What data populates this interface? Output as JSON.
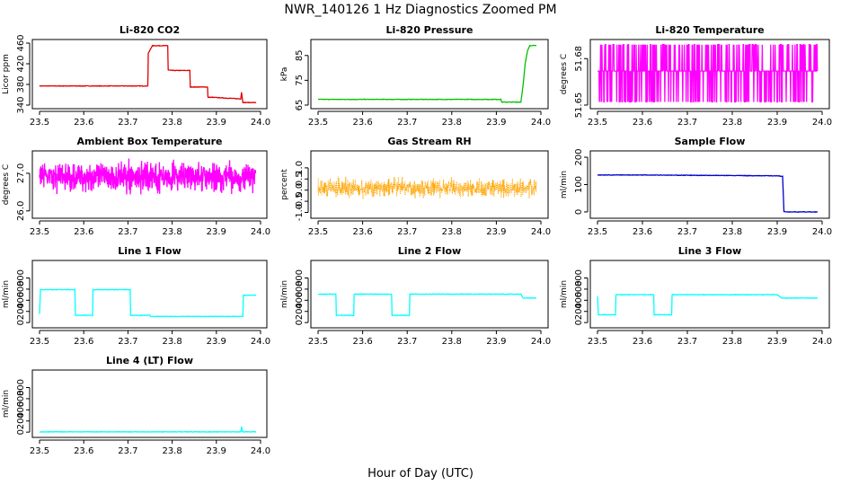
{
  "figure": {
    "title": "NWR_140126  1 Hz Diagnostics Zoomed PM",
    "xlabel": "Hour of Day (UTC)"
  },
  "chart_data": [
    {
      "type": "line",
      "title": "Li-820 CO2",
      "ylabel": "Licor ppm",
      "color": "#e00000",
      "xlim": [
        23.5,
        24.0
      ],
      "ylim": [
        340,
        460
      ],
      "xticks": [
        "23.5",
        "23.6",
        "23.7",
        "23.8",
        "23.9",
        "24.0"
      ],
      "yticks": [
        340,
        380,
        420,
        460
      ],
      "series": [
        {
          "x": [
            23.5,
            23.745,
            23.746,
            23.755,
            23.756,
            23.79,
            23.791,
            23.8,
            23.801,
            23.84,
            23.841,
            23.85,
            23.851,
            23.88,
            23.881,
            23.89,
            23.891,
            23.955,
            23.957,
            23.96,
            23.962,
            23.99
          ],
          "y": [
            377,
            377,
            440,
            455,
            455,
            455,
            408,
            407,
            407,
            407,
            375,
            375,
            375,
            375,
            355,
            355,
            355,
            352,
            365,
            345,
            345,
            345
          ]
        }
      ]
    },
    {
      "type": "line",
      "title": "Li-820 Pressure",
      "ylabel": "kPa",
      "color": "#00c000",
      "xlim": [
        23.5,
        24.0
      ],
      "ylim": [
        65,
        90
      ],
      "xticks": [
        "23.5",
        "23.6",
        "23.7",
        "23.8",
        "23.9",
        "24.0"
      ],
      "yticks": [
        65,
        75,
        85
      ],
      "series": [
        {
          "x": [
            23.5,
            23.91,
            23.912,
            23.955,
            23.96,
            23.965,
            23.97,
            23.975,
            23.98,
            23.99
          ],
          "y": [
            67.3,
            67.3,
            66.2,
            66.2,
            73,
            82,
            87,
            89,
            89,
            89
          ]
        }
      ]
    },
    {
      "type": "line",
      "title": "Li-820 Temperature",
      "ylabel": "degrees C",
      "color": "#ff00ff",
      "xlim": [
        23.5,
        24.0
      ],
      "ylim": [
        51.65,
        51.69
      ],
      "xticks": [
        "23.5",
        "23.6",
        "23.7",
        "23.8",
        "23.9",
        "24.0"
      ],
      "yticks": [
        51.65,
        51.68
      ],
      "yticklabels": [
        "51.65",
        "51.68"
      ],
      "levels": [
        51.652,
        51.672,
        51.689
      ],
      "series": [
        {
          "description_range": [
            23.5,
            23.99
          ]
        }
      ]
    },
    {
      "type": "line",
      "title": "Ambient Box Temperature",
      "ylabel": "degrees C",
      "color": "#ff00ff",
      "xlim": [
        23.5,
        24.0
      ],
      "ylim": [
        25.9,
        27.5
      ],
      "xticks": [
        "23.5",
        "23.6",
        "23.7",
        "23.8",
        "23.9",
        "24.0"
      ],
      "yticks": [
        26.0,
        27.0
      ],
      "yticklabels": [
        "26.0",
        "27.0"
      ],
      "mean": 26.9,
      "spread": 0.45
    },
    {
      "type": "line",
      "title": "Gas Stream RH",
      "ylabel": "percent",
      "color": "#ffa500",
      "xlim": [
        23.5,
        24.0
      ],
      "ylim": [
        -1.1,
        1.6
      ],
      "xticks": [
        "23.5",
        "23.6",
        "23.7",
        "23.8",
        "23.9",
        "24.0"
      ],
      "yticks": [
        -1.0,
        -0.5,
        0.0,
        0.5,
        1.0
      ],
      "yticklabels": [
        "-1.0",
        "-0.5",
        "0.0",
        "0.5",
        "1.0"
      ],
      "mean": 0.1,
      "spread": 0.5
    },
    {
      "type": "line",
      "title": "Sample Flow",
      "ylabel": "ml/min",
      "color": "#0000cc",
      "xlim": [
        23.5,
        24.0
      ],
      "ylim": [
        -10,
        210
      ],
      "xticks": [
        "23.5",
        "23.6",
        "23.7",
        "23.8",
        "23.9",
        "24.0"
      ],
      "yticks": [
        0,
        100,
        200
      ],
      "series": [
        {
          "x": [
            23.5,
            23.6,
            23.7,
            23.8,
            23.9,
            23.912,
            23.915,
            23.92,
            23.99
          ],
          "y": [
            135,
            135,
            134,
            133,
            132,
            130,
            2,
            0,
            0
          ]
        }
      ]
    },
    {
      "type": "line",
      "title": "Line 1 Flow",
      "ylabel": "ml/min",
      "color": "#00ffff",
      "xlim": [
        23.5,
        24.0
      ],
      "ylim": [
        -30,
        1050
      ],
      "xticks": [
        "23.5",
        "23.6",
        "23.7",
        "23.8",
        "23.9",
        "24.0"
      ],
      "yticks": [
        0,
        200,
        400,
        600,
        800
      ],
      "series": [
        {
          "x": [
            23.5,
            23.502,
            23.58,
            23.581,
            23.62,
            23.621,
            23.705,
            23.706,
            23.75,
            23.751,
            23.96,
            23.961,
            23.99
          ],
          "y": [
            150,
            590,
            590,
            130,
            130,
            590,
            590,
            130,
            130,
            110,
            110,
            490,
            490
          ]
        }
      ]
    },
    {
      "type": "line",
      "title": "Line 2 Flow",
      "ylabel": "ml/min",
      "color": "#00ffff",
      "xlim": [
        23.5,
        24.0
      ],
      "ylim": [
        -30,
        1050
      ],
      "xticks": [
        "23.5",
        "23.6",
        "23.7",
        "23.8",
        "23.9",
        "24.0"
      ],
      "yticks": [
        0,
        200,
        400,
        600,
        800
      ],
      "series": [
        {
          "x": [
            23.5,
            23.54,
            23.541,
            23.58,
            23.581,
            23.665,
            23.666,
            23.705,
            23.706,
            23.955,
            23.96,
            23.99
          ],
          "y": [
            510,
            510,
            130,
            130,
            510,
            510,
            130,
            130,
            510,
            510,
            440,
            440
          ]
        }
      ]
    },
    {
      "type": "line",
      "title": "Line 3 Flow",
      "ylabel": "ml/min",
      "color": "#00ffff",
      "xlim": [
        23.5,
        24.0
      ],
      "ylim": [
        -30,
        1050
      ],
      "xticks": [
        "23.5",
        "23.6",
        "23.7",
        "23.8",
        "23.9",
        "24.0"
      ],
      "yticks": [
        0,
        200,
        400,
        600,
        800
      ],
      "series": [
        {
          "x": [
            23.5,
            23.502,
            23.54,
            23.541,
            23.625,
            23.626,
            23.665,
            23.666,
            23.9,
            23.91,
            23.99
          ],
          "y": [
            470,
            140,
            140,
            500,
            500,
            140,
            140,
            500,
            500,
            440,
            440
          ]
        }
      ]
    },
    {
      "type": "line",
      "title": "Line 4 (LT) Flow",
      "ylabel": "ml/min",
      "color": "#00ffff",
      "xlim": [
        23.5,
        24.0
      ],
      "ylim": [
        -30,
        1050
      ],
      "xticks": [
        "23.5",
        "23.6",
        "23.7",
        "23.8",
        "23.9",
        "24.0"
      ],
      "yticks": [
        0,
        200,
        400,
        600,
        800
      ],
      "series": [
        {
          "x": [
            23.5,
            23.955,
            23.957,
            23.959,
            23.962,
            23.99
          ],
          "y": [
            5,
            5,
            100,
            5,
            5,
            5
          ]
        }
      ]
    }
  ]
}
